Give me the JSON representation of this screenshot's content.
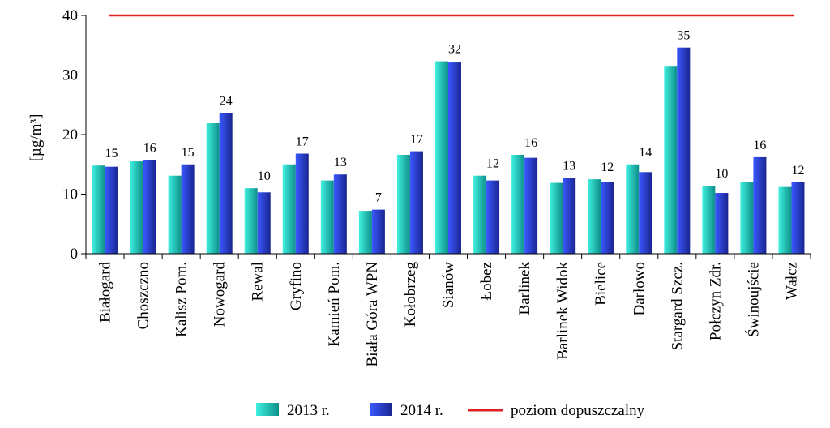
{
  "chart_data": {
    "type": "bar",
    "ylabel": "[µg/m³]",
    "ylim": [
      0,
      40
    ],
    "yticks": [
      0,
      10,
      20,
      30,
      40
    ],
    "grid": false,
    "legend_position": "bottom",
    "categories": [
      "Białogard",
      "Choszczno",
      "Kalisz Pom.",
      "Nowogard",
      "Rewal",
      "Gryfino",
      "Kamień Pom.",
      "Biała Góra WPN",
      "Kołobrzeg",
      "Sianów",
      "Łobez",
      "Barlinek",
      "Barlinek Widok",
      "Bielice",
      "Darłowo",
      "Stargard Szcz.",
      "Połczyn Zdr.",
      "Świnoujście",
      "Wałcz"
    ],
    "series": [
      {
        "name": "2013 r.",
        "color": "#1ec8c0",
        "values": [
          14.8,
          15.5,
          13.1,
          21.9,
          11.0,
          15.0,
          12.3,
          7.2,
          16.6,
          32.3,
          13.1,
          16.6,
          11.9,
          12.5,
          15.0,
          31.4,
          11.4,
          12.1,
          11.2
        ]
      },
      {
        "name": "2014 r.",
        "color": "#2437c8",
        "values": [
          14.6,
          15.7,
          15.0,
          23.6,
          10.3,
          16.8,
          13.3,
          7.4,
          17.2,
          32.1,
          12.3,
          16.1,
          12.7,
          12.0,
          13.7,
          34.6,
          10.2,
          16.2,
          12.0
        ]
      }
    ],
    "data_labels": [
      "15",
      "16",
      "15",
      "24",
      "10",
      "17",
      "13",
      "7",
      "17",
      "32",
      "12",
      "16",
      "13",
      "12",
      "14",
      "35",
      "10",
      "16",
      "12"
    ],
    "reference_line": {
      "name": "poziom dopuszczalny",
      "value": 40,
      "color": "#e02020"
    }
  }
}
